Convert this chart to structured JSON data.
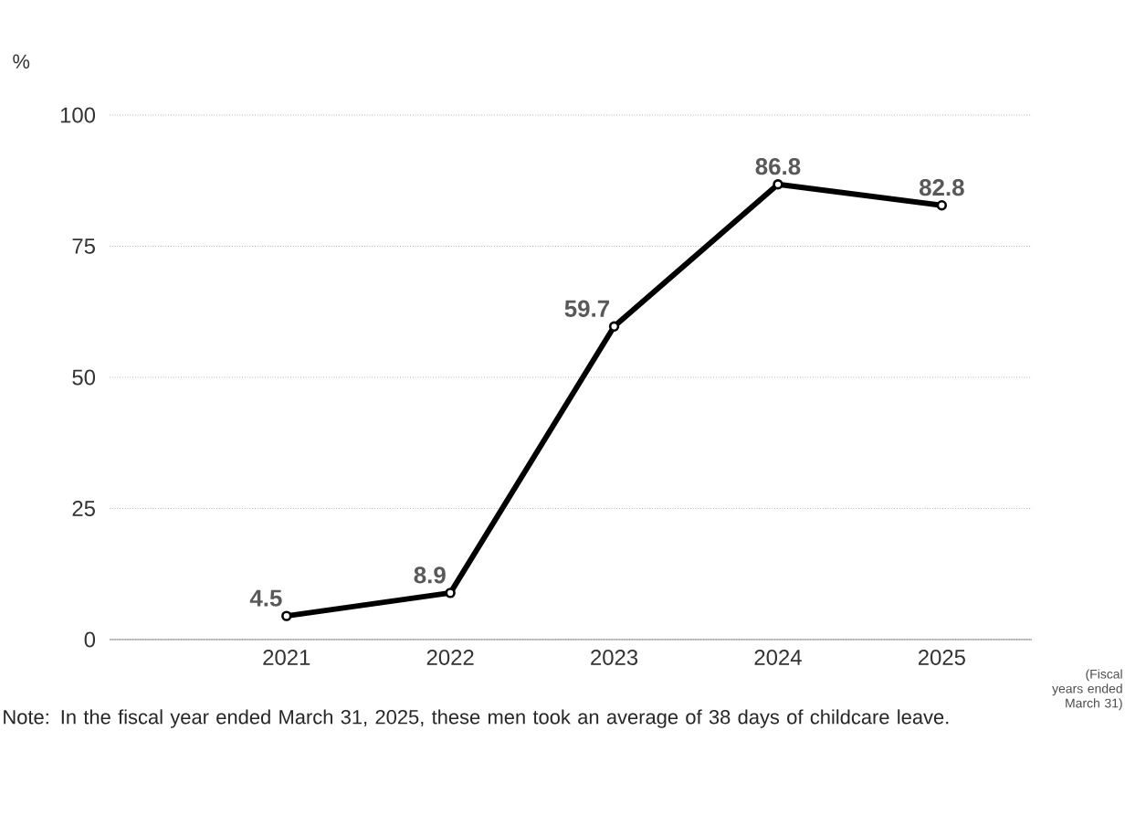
{
  "chart_data": {
    "type": "line",
    "categories": [
      "2021",
      "2022",
      "2023",
      "2024",
      "2025"
    ],
    "values": [
      4.5,
      8.9,
      59.7,
      86.8,
      82.8
    ],
    "color": "#000000",
    "ylim": [
      0,
      100
    ],
    "yticks": [
      0,
      25,
      50,
      75,
      100
    ],
    "ylabel": "%",
    "xlabel": "(Fiscal years ended March 31)",
    "grid": "y",
    "marker": "circle",
    "line_style": "solid",
    "data_labels": true,
    "annotations": [
      "Note: In the fiscal year ended March 31, 2025, these men took an average of 38 days of childcare leave."
    ]
  }
}
